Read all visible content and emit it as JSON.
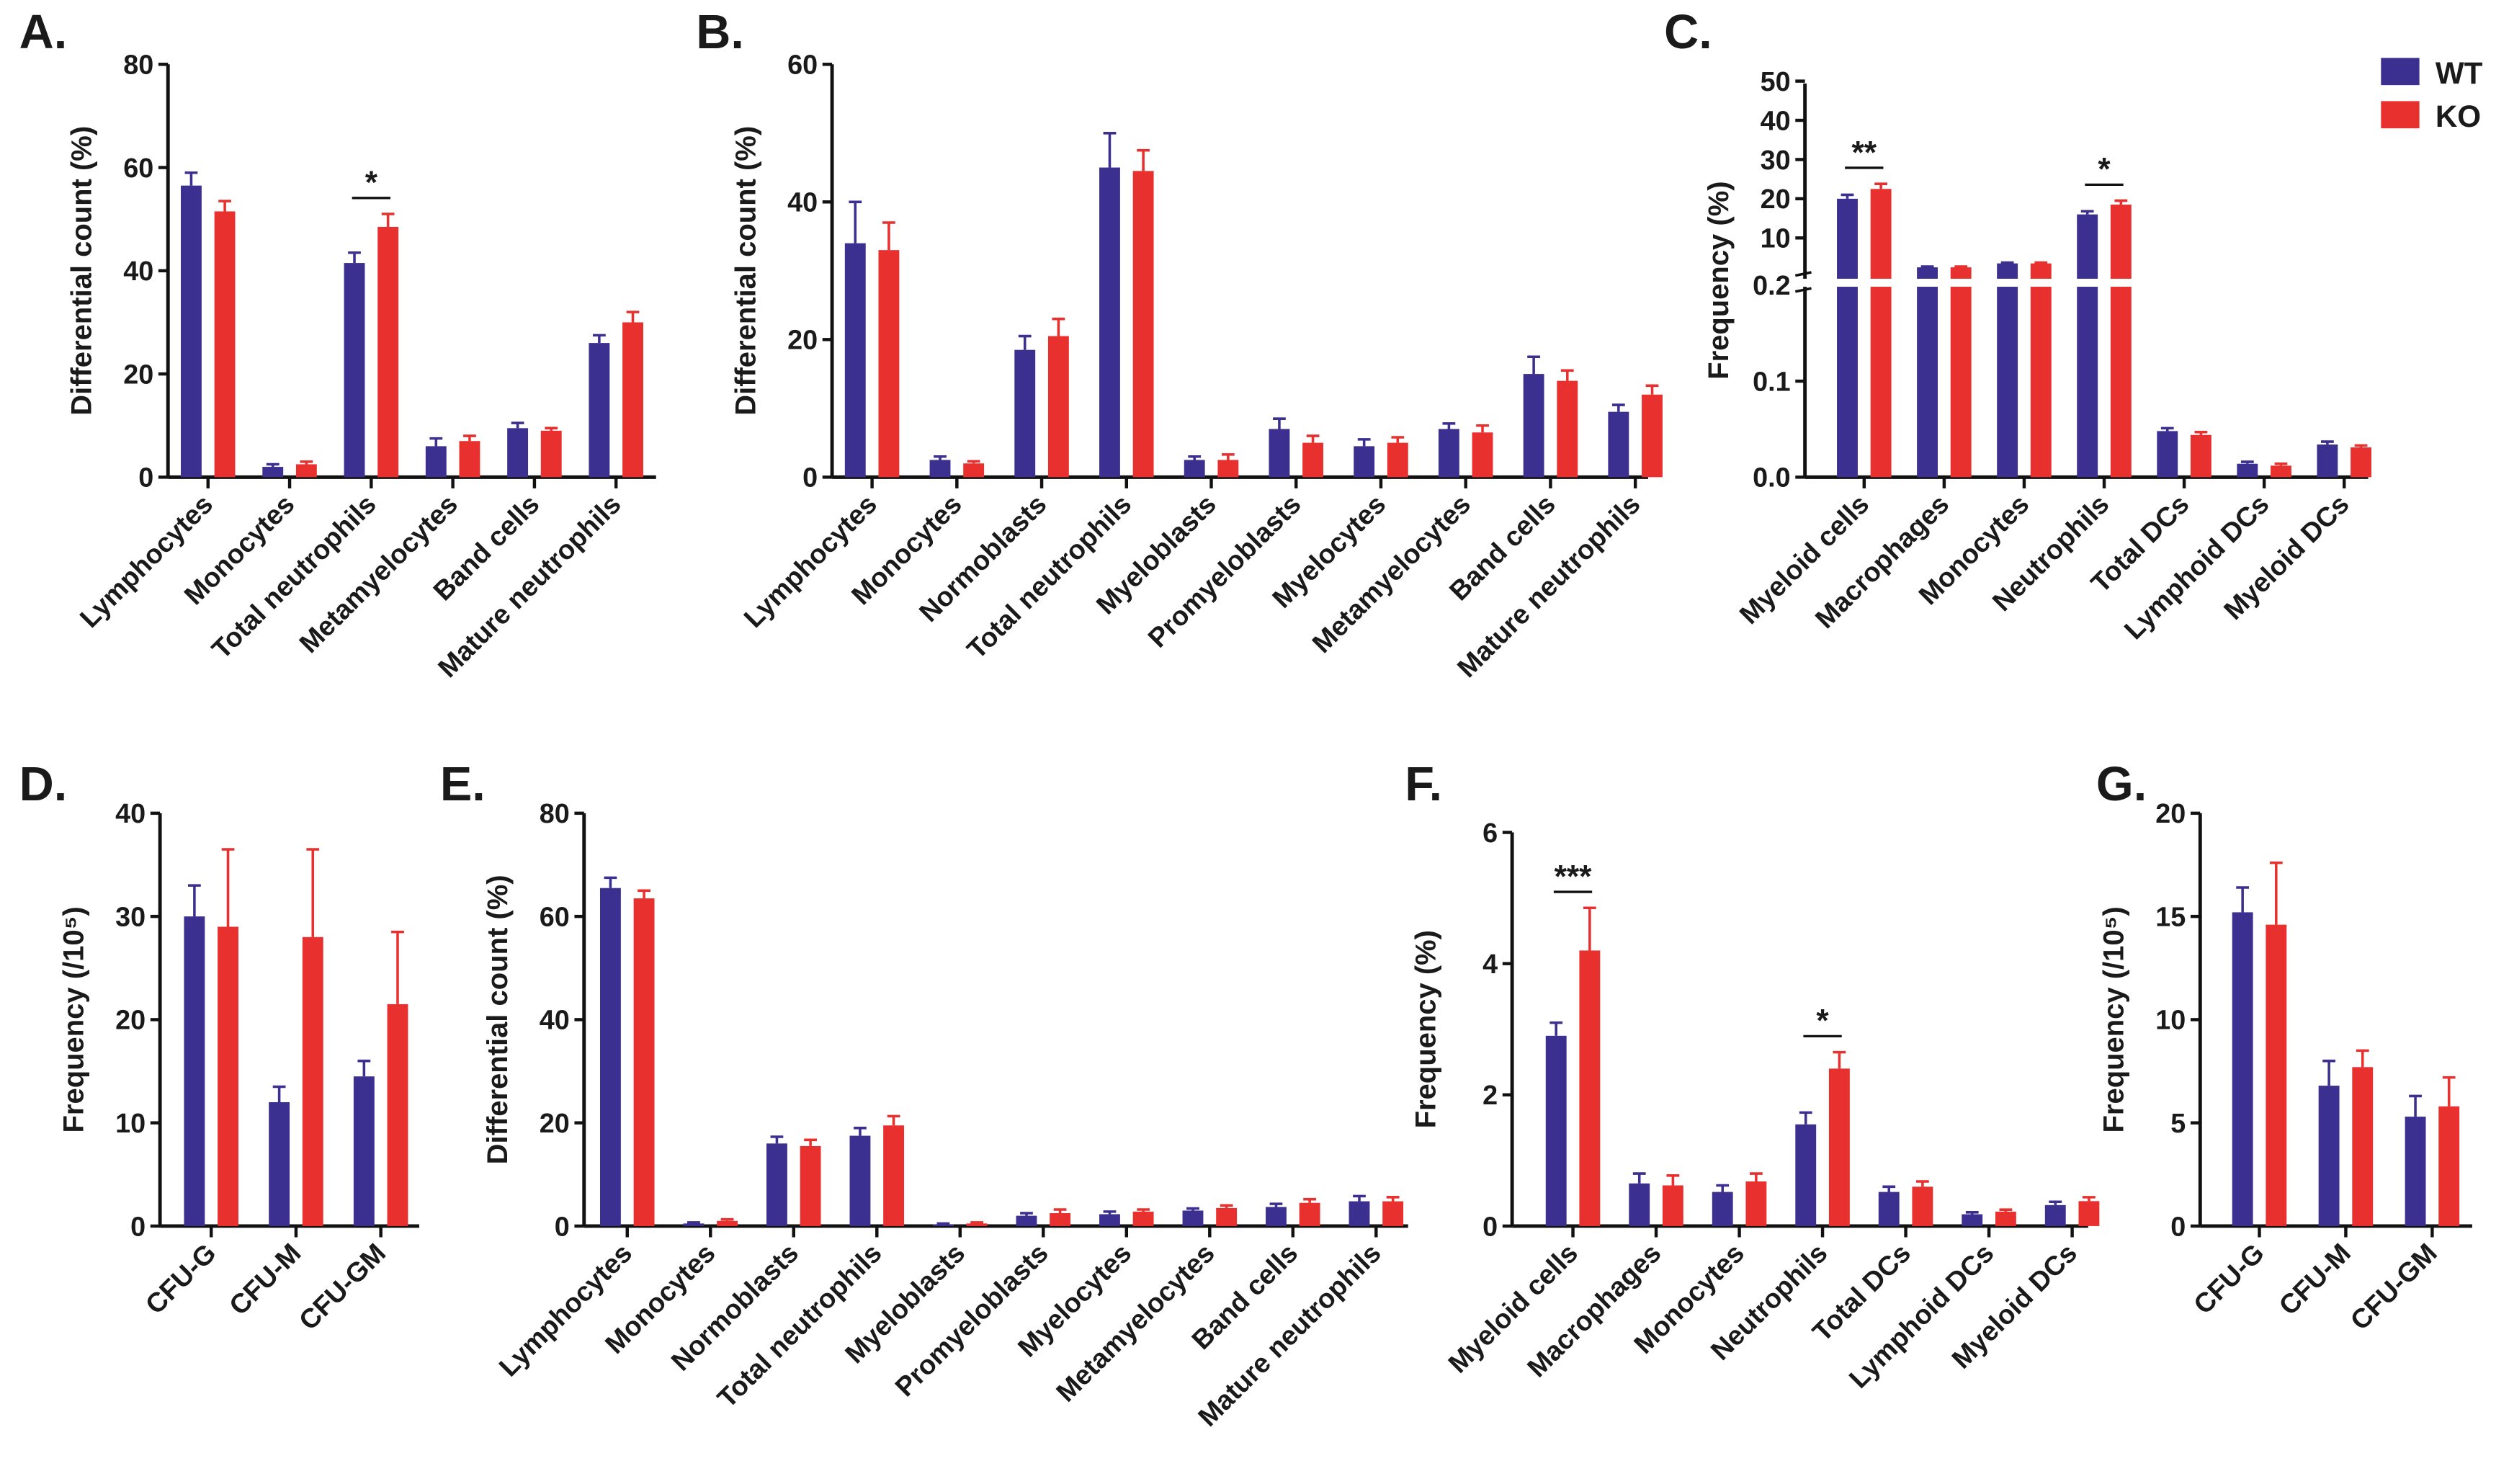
{
  "colors": {
    "WT": "#3b2f8f",
    "KO": "#e8302e"
  },
  "legend": [
    {
      "name": "WT",
      "color": "#3b2f8f"
    },
    {
      "name": "KO",
      "color": "#e8302e"
    }
  ],
  "chart_data": [
    {
      "panel": "A.",
      "type": "bar",
      "ylabel": "Differential count (%)",
      "ylim": [
        0,
        80
      ],
      "yticks": [
        "0",
        "20",
        "40",
        "60",
        "80"
      ],
      "categories": [
        "Lymphocytes",
        "Monocytes",
        "Total neutrophils",
        "Metamyelocytes",
        "Band cells",
        "Mature neutrophils"
      ],
      "series": [
        {
          "name": "WT",
          "values": [
            56.5,
            2,
            41.5,
            6,
            9.5,
            26
          ],
          "errors": [
            2.5,
            0.5,
            2,
            1.5,
            1,
            1.5
          ]
        },
        {
          "name": "KO",
          "values": [
            51.5,
            2.5,
            48.5,
            7,
            9,
            30
          ],
          "errors": [
            2,
            0.5,
            2.5,
            1,
            0.5,
            2
          ]
        }
      ],
      "significance": [
        {
          "category": "Total neutrophils",
          "label": "*"
        }
      ]
    },
    {
      "panel": "B.",
      "type": "bar",
      "ylabel": "Differential count (%)",
      "ylim": [
        0,
        60
      ],
      "yticks": [
        "0",
        "20",
        "40",
        "60"
      ],
      "categories": [
        "Lymphocytes",
        "Monocytes",
        "Normoblasts",
        "Total neutrophils",
        "Myeloblasts",
        "Promyeloblasts",
        "Myelocytes",
        "Metamyelocytes",
        "Band cells",
        "Mature neutrophils"
      ],
      "series": [
        {
          "name": "WT",
          "values": [
            34,
            2.5,
            18.5,
            45,
            2.5,
            7,
            4.5,
            7,
            15,
            9.5
          ],
          "errors": [
            6,
            0.5,
            2,
            5,
            0.5,
            1.5,
            1,
            0.8,
            2.5,
            1
          ]
        },
        {
          "name": "KO",
          "values": [
            33,
            2,
            20.5,
            44.5,
            2.5,
            5,
            5,
            6.5,
            14,
            12
          ],
          "errors": [
            4,
            0.3,
            2.5,
            3,
            0.8,
            1,
            0.8,
            1,
            1.5,
            1.3
          ]
        }
      ],
      "significance": []
    },
    {
      "panel": "C.",
      "type": "bar",
      "ylabel": "Frequency (%)",
      "ylim": [
        0,
        50
      ],
      "axis_break": [
        0.2,
        10
      ],
      "yticks": [
        "0.0",
        "0.1",
        "0.2",
        "10",
        "20",
        "30",
        "40",
        "50"
      ],
      "categories": [
        "Myeloid cells",
        "Macrophages",
        "Monocytes",
        "Neutrophils",
        "Total DCs",
        "Lymphoid DCs",
        "Myeloid DCs"
      ],
      "series": [
        {
          "name": "WT",
          "values": [
            20,
            2.5,
            3.5,
            16,
            0.048,
            0.014,
            0.034
          ],
          "errors": [
            1,
            0.2,
            0.2,
            0.8,
            0.003,
            0.002,
            0.003
          ]
        },
        {
          "name": "KO",
          "values": [
            22.5,
            2.5,
            3.5,
            18.5,
            0.044,
            0.012,
            0.031
          ],
          "errors": [
            1.3,
            0.2,
            0.2,
            1,
            0.003,
            0.002,
            0.002
          ]
        }
      ],
      "significance": [
        {
          "category": "Myeloid cells",
          "label": "**"
        },
        {
          "category": "Neutrophils",
          "label": "*"
        }
      ]
    },
    {
      "panel": "D.",
      "type": "bar",
      "ylabel": "Frequency (/10⁵)",
      "ylim": [
        0,
        40
      ],
      "yticks": [
        "0",
        "10",
        "20",
        "30",
        "40"
      ],
      "categories": [
        "CFU-G",
        "CFU-M",
        "CFU-GM"
      ],
      "series": [
        {
          "name": "WT",
          "values": [
            30,
            12,
            14.5
          ],
          "errors": [
            3,
            1.5,
            1.5
          ]
        },
        {
          "name": "KO",
          "values": [
            29,
            28,
            21.5
          ],
          "errors": [
            7.5,
            8.5,
            7
          ]
        }
      ],
      "significance": []
    },
    {
      "panel": "E.",
      "type": "bar",
      "ylabel": "Differential count (%)",
      "ylim": [
        0,
        80
      ],
      "yticks": [
        "0",
        "20",
        "40",
        "60",
        "80"
      ],
      "categories": [
        "Lymphocytes",
        "Monocytes",
        "Normoblasts",
        "Total neutrophils",
        "Myeloblasts",
        "Promyeloblasts",
        "Myelocytes",
        "Metamyelocytes",
        "Band cells",
        "Mature neutrophils"
      ],
      "series": [
        {
          "name": "WT",
          "values": [
            65.5,
            0.5,
            16,
            17.5,
            0.3,
            2,
            2.3,
            3,
            3.7,
            4.8
          ],
          "errors": [
            2,
            0.2,
            1.3,
            1.5,
            0.2,
            0.5,
            0.5,
            0.4,
            0.6,
            1
          ]
        },
        {
          "name": "KO",
          "values": [
            63.5,
            1,
            15.5,
            19.5,
            0.5,
            2.5,
            2.8,
            3.5,
            4.5,
            4.8
          ],
          "errors": [
            1.5,
            0.3,
            1.2,
            1.8,
            0.2,
            0.7,
            0.4,
            0.5,
            0.7,
            0.8
          ]
        }
      ],
      "significance": []
    },
    {
      "panel": "F.",
      "type": "bar",
      "ylabel": "Frequency (%)",
      "ylim": [
        0,
        6
      ],
      "yticks": [
        "0",
        "2",
        "4",
        "6"
      ],
      "categories": [
        "Myeloid cells",
        "Macrophages",
        "Monocytes",
        "Neutrophils",
        "Total DCs",
        "Lymphoid DCs",
        "Myeloid DCs"
      ],
      "series": [
        {
          "name": "WT",
          "values": [
            2.9,
            0.65,
            0.52,
            1.55,
            0.52,
            0.18,
            0.32
          ],
          "errors": [
            0.2,
            0.15,
            0.1,
            0.18,
            0.08,
            0.03,
            0.05
          ]
        },
        {
          "name": "KO",
          "values": [
            4.2,
            0.62,
            0.68,
            2.4,
            0.6,
            0.22,
            0.38
          ],
          "errors": [
            0.65,
            0.15,
            0.12,
            0.25,
            0.08,
            0.03,
            0.06
          ]
        }
      ],
      "significance": [
        {
          "category": "Myeloid cells",
          "label": "***"
        },
        {
          "category": "Neutrophils",
          "label": "*"
        }
      ]
    },
    {
      "panel": "G.",
      "type": "bar",
      "ylabel": "Frequency (/10⁵)",
      "ylim": [
        0,
        20
      ],
      "yticks": [
        "0",
        "5",
        "10",
        "15",
        "20"
      ],
      "categories": [
        "CFU-G",
        "CFU-M",
        "CFU-GM"
      ],
      "series": [
        {
          "name": "WT",
          "values": [
            15.2,
            6.8,
            5.3
          ],
          "errors": [
            1.2,
            1.2,
            1
          ]
        },
        {
          "name": "KO",
          "values": [
            14.6,
            7.7,
            5.8
          ],
          "errors": [
            3,
            0.8,
            1.4
          ]
        }
      ],
      "significance": []
    }
  ]
}
